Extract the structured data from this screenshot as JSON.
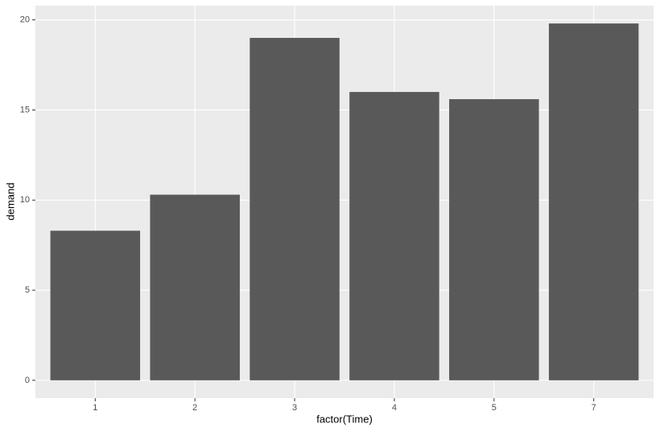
{
  "chart_data": {
    "type": "bar",
    "x_label": "factor(Time)",
    "y_label": "demand",
    "categories": [
      "1",
      "2",
      "3",
      "4",
      "5",
      "7"
    ],
    "values": [
      8.3,
      10.3,
      19.0,
      16.0,
      15.6,
      19.8
    ],
    "color": "#595959",
    "ylim": [
      -0.99,
      20.79
    ],
    "yticks": [
      0,
      5,
      10,
      15,
      20
    ],
    "grid": true
  }
}
